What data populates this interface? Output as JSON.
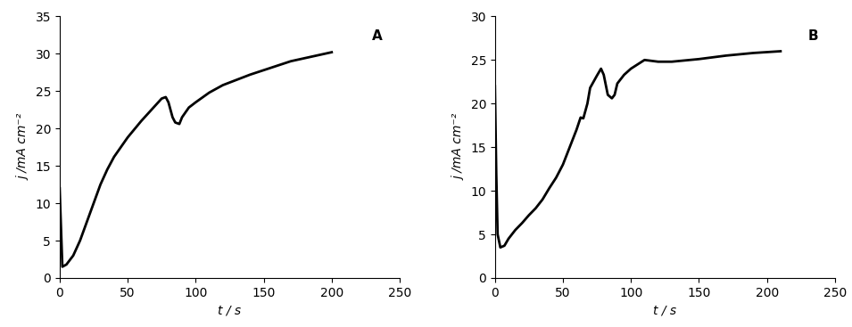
{
  "chart_data": [
    {
      "type": "line",
      "annotation": "A",
      "x_label": "t / s",
      "y_label": "j /mA cm⁻²",
      "xlim": [
        0,
        250
      ],
      "xticks": [
        0,
        50,
        100,
        150,
        200,
        250
      ],
      "ylim": [
        0,
        35
      ],
      "yticks": [
        0,
        5,
        10,
        15,
        20,
        25,
        30,
        35
      ],
      "series": [
        {
          "color": "#000000",
          "x": [
            0,
            2,
            5,
            10,
            15,
            20,
            25,
            30,
            35,
            40,
            45,
            50,
            55,
            60,
            65,
            70,
            75,
            78,
            80,
            83,
            85,
            88,
            90,
            95,
            100,
            110,
            120,
            130,
            140,
            150,
            160,
            170,
            180,
            190,
            200
          ],
          "values": [
            12,
            1.5,
            1.8,
            3,
            5,
            7.5,
            10,
            12.5,
            14.5,
            16.2,
            17.5,
            18.8,
            19.9,
            21,
            22,
            23,
            24,
            24.2,
            23.5,
            21.5,
            20.8,
            20.6,
            21.5,
            22.8,
            23.5,
            24.8,
            25.8,
            26.5,
            27.2,
            27.8,
            28.4,
            29,
            29.4,
            29.8,
            30.2
          ]
        }
      ]
    },
    {
      "type": "line",
      "annotation": "B",
      "x_label": "t / s",
      "y_label": "j /mA cm⁻²",
      "xlim": [
        0,
        250
      ],
      "xticks": [
        0,
        50,
        100,
        150,
        200,
        250
      ],
      "ylim": [
        0,
        30
      ],
      "yticks": [
        0,
        5,
        10,
        15,
        20,
        25,
        30
      ],
      "series": [
        {
          "color": "#000000",
          "x": [
            0,
            1,
            2,
            4,
            7,
            10,
            15,
            20,
            25,
            30,
            35,
            40,
            45,
            50,
            55,
            60,
            63,
            65,
            68,
            70,
            75,
            78,
            80,
            83,
            86,
            88,
            90,
            95,
            100,
            105,
            110,
            120,
            130,
            150,
            170,
            190,
            210
          ],
          "values": [
            22,
            12,
            5,
            3.5,
            3.7,
            4.5,
            5.5,
            6.3,
            7.2,
            8,
            9,
            10.3,
            11.5,
            13,
            15,
            17,
            18.4,
            18.3,
            20,
            21.8,
            23.2,
            24,
            23.3,
            21,
            20.6,
            21,
            22.3,
            23.3,
            24,
            24.5,
            25,
            24.8,
            24.8,
            25.1,
            25.5,
            25.8,
            26
          ]
        }
      ]
    }
  ]
}
